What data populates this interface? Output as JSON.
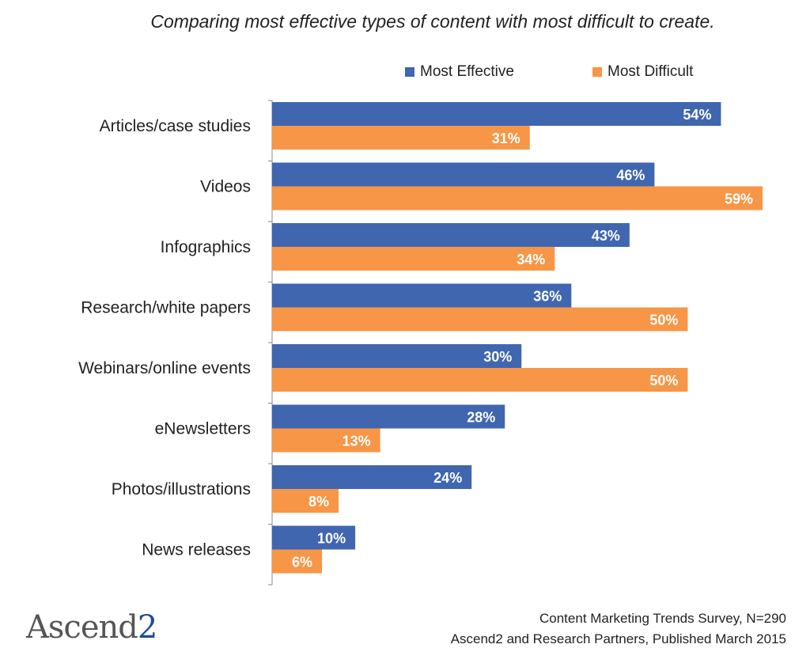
{
  "chart_data": {
    "type": "bar",
    "orientation": "horizontal",
    "title": "Comparing most effective types of content with most difficult to create.",
    "categories": [
      "Articles/case studies",
      "Videos",
      "Infographics",
      "Research/white papers",
      "Webinars/online events",
      "eNewsletters",
      "Photos/illustrations",
      "News releases"
    ],
    "series": [
      {
        "name": "Most Effective",
        "color": "#4066b0",
        "values": [
          54,
          46,
          43,
          36,
          30,
          28,
          24,
          10
        ],
        "labels": [
          "54%",
          "46%",
          "43%",
          "36%",
          "30%",
          "28%",
          "24%",
          "10%"
        ]
      },
      {
        "name": "Most Difficult",
        "color": "#f79646",
        "values": [
          31,
          59,
          34,
          50,
          50,
          13,
          8,
          6
        ],
        "labels": [
          "31%",
          "59%",
          "34%",
          "50%",
          "50%",
          "13%",
          "8%",
          "6%"
        ]
      }
    ],
    "xlim": [
      0,
      59
    ],
    "grid": false,
    "legend_position": "top"
  },
  "legend": {
    "effective_label": "Most Effective",
    "difficult_label": "Most Difficult"
  },
  "source": {
    "line1": "Content Marketing Trends Survey, N=290",
    "line2": "Ascend2 and Research Partners, Published March 2015"
  },
  "logo": {
    "text": "Ascend",
    "suffix": "2"
  }
}
